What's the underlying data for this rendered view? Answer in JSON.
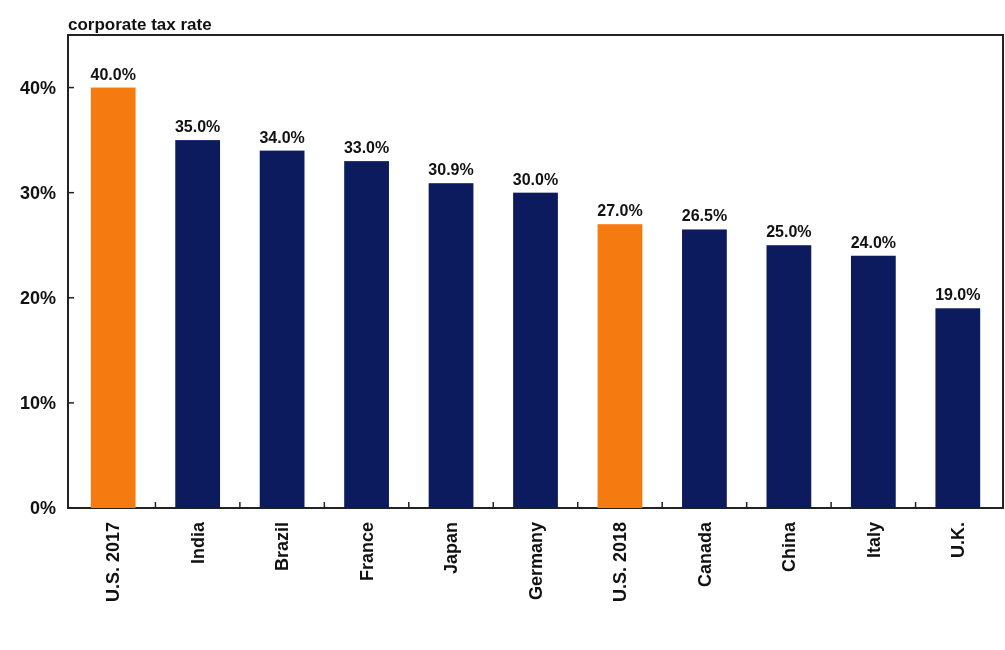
{
  "chart_data": {
    "type": "bar",
    "title": "corporate tax rate",
    "categories": [
      "U.S. 2017",
      "India",
      "Brazil",
      "France",
      "Japan",
      "Germany",
      "U.S. 2018",
      "Canada",
      "China",
      "Italy",
      "U.K."
    ],
    "values": [
      40.0,
      35.0,
      34.0,
      33.0,
      30.9,
      30.0,
      27.0,
      26.5,
      25.0,
      24.0,
      19.0
    ],
    "colors": [
      "#f57a10",
      "#0c1a5e",
      "#0c1a5e",
      "#0c1a5e",
      "#0c1a5e",
      "#0c1a5e",
      "#f57a10",
      "#0c1a5e",
      "#0c1a5e",
      "#0c1a5e",
      "#0c1a5e"
    ],
    "value_labels": [
      "40.0%",
      "35.0%",
      "34.0%",
      "33.0%",
      "30.9%",
      "30.0%",
      "27.0%",
      "26.5%",
      "25.0%",
      "24.0%",
      "19.0%"
    ],
    "ylim": [
      0,
      45
    ],
    "yticks": [
      {
        "value": 0,
        "label": "0%"
      },
      {
        "value": 10,
        "label": "10%"
      },
      {
        "value": 20,
        "label": "20%"
      },
      {
        "value": 30,
        "label": "30%"
      },
      {
        "value": 40,
        "label": "40%"
      }
    ],
    "grid": false
  }
}
